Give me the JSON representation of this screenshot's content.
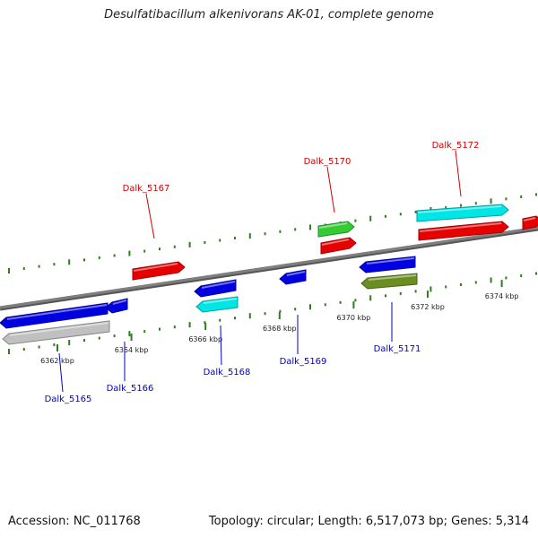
{
  "title": "Desulfatibacillum alkenivorans AK-01, complete genome",
  "footer": {
    "accession": "Accession: NC_011768",
    "summary": "Topology: circular; Length: 6,517,073 bp; Genes: 5,314"
  },
  "colors": {
    "backbone": "#7f7f7f",
    "tick_mark": "#2e7d1e",
    "forward_label": "#d40000",
    "reverse_label": "#0000c8"
  },
  "axis": {
    "ticks": [
      {
        "pos_kbp": 6362,
        "label": "6362 kbp"
      },
      {
        "pos_kbp": 6364,
        "label": "6364 kbp"
      },
      {
        "pos_kbp": 6366,
        "label": "6366 kbp"
      },
      {
        "pos_kbp": 6368,
        "label": "6368 kbp"
      },
      {
        "pos_kbp": 6370,
        "label": "6370 kbp"
      },
      {
        "pos_kbp": 6372,
        "label": "6372 kbp"
      },
      {
        "pos_kbp": 6374,
        "label": "6374 kbp"
      }
    ]
  },
  "genes": [
    {
      "strand": "+",
      "color": "#e60000",
      "label": "Dalk_5167"
    },
    {
      "strand": "+",
      "color": "#33cc33",
      "label": "Dalk_5170"
    },
    {
      "strand": "+",
      "color": "#e60000",
      "label": ""
    },
    {
      "strand": "+",
      "color": "#00e5e5",
      "label": "Dalk_5172"
    },
    {
      "strand": "+",
      "color": "#e60000",
      "label": ""
    },
    {
      "strand": "+",
      "color": "#e60000",
      "label": ""
    },
    {
      "strand": "-",
      "color": "#0000e0",
      "label": "Dalk_5165"
    },
    {
      "strand": "-",
      "color": "#c0c0c0",
      "label": ""
    },
    {
      "strand": "-",
      "color": "#0000e0",
      "label": "Dalk_5166"
    },
    {
      "strand": "-",
      "color": "#0000e0",
      "label": ""
    },
    {
      "strand": "-",
      "color": "#00e5e5",
      "label": "Dalk_5168"
    },
    {
      "strand": "-",
      "color": "#0000e0",
      "label": "Dalk_5169"
    },
    {
      "strand": "-",
      "color": "#0000e0",
      "label": ""
    },
    {
      "strand": "-",
      "color": "#6b8e23",
      "label": "Dalk_5171"
    }
  ]
}
